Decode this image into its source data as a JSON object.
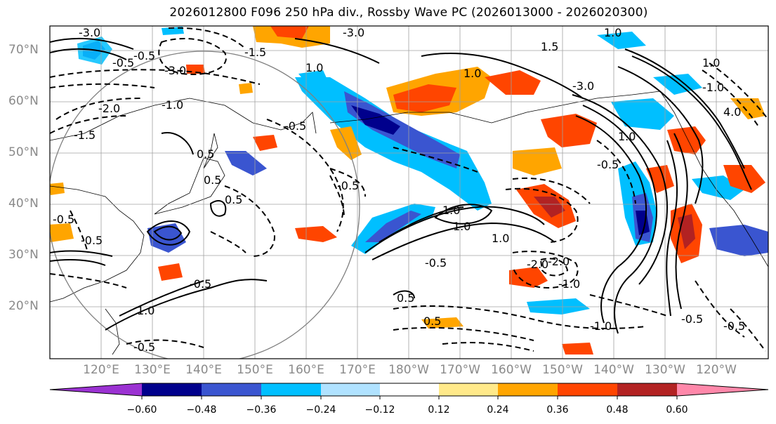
{
  "title": "2026012800 F096 250 hPa div., Rossby Wave PC (2026013000 - 2026020300)",
  "lat_labels": [
    "70°N",
    "60°N",
    "50°N",
    "40°N",
    "30°N",
    "20°N"
  ],
  "lon_labels": [
    "120°E",
    "130°E",
    "140°E",
    "150°E",
    "160°E",
    "170°E",
    "180°W",
    "170°W",
    "160°W",
    "150°W",
    "140°W",
    "130°W",
    "120°W"
  ],
  "colorbar": {
    "colors": [
      "#9b32d2",
      "#00008c",
      "#3a55d0",
      "#00bfff",
      "#b0e2ff",
      "#ffffff",
      "#ffe98a",
      "#ffa500",
      "#ff4500",
      "#b22222",
      "#ff88aa"
    ],
    "ticks": [
      "−0.60",
      "−0.48",
      "−0.36",
      "−0.24",
      "−0.12",
      "0.12",
      "0.24",
      "0.36",
      "0.48",
      "0.60"
    ]
  },
  "contour_labels": [
    "-3.0",
    "-0.5",
    "-0.5",
    "-3.0",
    "-2.0",
    "-1.5",
    "-1.0",
    "0.5",
    "-0.5",
    "-0.5",
    "1.0",
    "1.0",
    "-0.5",
    "1.5",
    "-3.0",
    "-3.0",
    "1.0",
    "-1.5",
    "-2.0",
    "1.0",
    "-1.0",
    "-0.5",
    "0.5",
    "0.5",
    "-0.5",
    "1.0",
    "-1.0",
    "-0.5",
    "-0.5",
    "1.0",
    "1.0",
    "0.5",
    "-0.5",
    "-0.5",
    "-2.0",
    "1.0",
    "-0.5",
    "4.0",
    "1.0",
    "0.5",
    "-1.0"
  ]
}
